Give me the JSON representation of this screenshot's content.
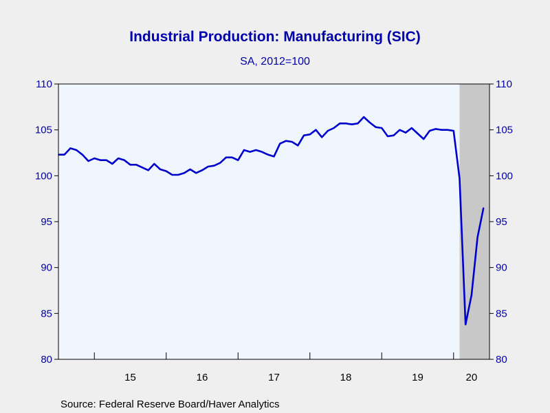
{
  "chart_data": {
    "type": "line",
    "title": "Industrial Production: Manufacturing (SIC)",
    "subtitle": "SA, 2012=100",
    "source": "Source:  Federal Reserve Board/Haver Analytics",
    "ylim": [
      80,
      110
    ],
    "yticks": [
      80,
      85,
      90,
      95,
      100,
      105,
      110
    ],
    "ytick_labels": [
      "80",
      "85",
      "90",
      "95",
      "100",
      "105",
      "110"
    ],
    "xlim": [
      "2014-07",
      "2020-07"
    ],
    "xtick_labels": [
      "15",
      "16",
      "17",
      "18",
      "19",
      "20"
    ],
    "recession": {
      "start": "2020-02",
      "end": "2020-07"
    },
    "colors": {
      "line": "#0000cc",
      "plot_bg": "#f0f6fe",
      "recession": "#c8c8c8",
      "text": "#0000aa"
    },
    "grid": false,
    "series": [
      {
        "x": [
          "2014-07",
          "2014-08",
          "2014-09",
          "2014-10",
          "2014-11",
          "2014-12",
          "2015-01",
          "2015-02",
          "2015-03",
          "2015-04",
          "2015-05",
          "2015-06",
          "2015-07",
          "2015-08",
          "2015-09",
          "2015-10",
          "2015-11",
          "2015-12",
          "2016-01",
          "2016-02",
          "2016-03",
          "2016-04",
          "2016-05",
          "2016-06",
          "2016-07",
          "2016-08",
          "2016-09",
          "2016-10",
          "2016-11",
          "2016-12",
          "2017-01",
          "2017-02",
          "2017-03",
          "2017-04",
          "2017-05",
          "2017-06",
          "2017-07",
          "2017-08",
          "2017-09",
          "2017-10",
          "2017-11",
          "2017-12",
          "2018-01",
          "2018-02",
          "2018-03",
          "2018-04",
          "2018-05",
          "2018-06",
          "2018-07",
          "2018-08",
          "2018-09",
          "2018-10",
          "2018-11",
          "2018-12",
          "2019-01",
          "2019-02",
          "2019-03",
          "2019-04",
          "2019-05",
          "2019-06",
          "2019-07",
          "2019-08",
          "2019-09",
          "2019-10",
          "2019-11",
          "2019-12",
          "2020-01",
          "2020-02",
          "2020-03",
          "2020-04",
          "2020-05",
          "2020-06"
        ],
        "values": [
          102.3,
          102.3,
          103.0,
          102.8,
          102.3,
          101.6,
          101.9,
          101.7,
          101.7,
          101.3,
          101.9,
          101.7,
          101.2,
          101.2,
          100.9,
          100.6,
          101.3,
          100.7,
          100.5,
          100.1,
          100.1,
          100.3,
          100.7,
          100.3,
          100.6,
          101.0,
          101.1,
          101.4,
          102.0,
          102.0,
          101.7,
          102.8,
          102.6,
          102.8,
          102.6,
          102.3,
          102.1,
          103.5,
          103.8,
          103.7,
          103.3,
          104.4,
          104.5,
          105.0,
          104.2,
          104.9,
          105.2,
          105.7,
          105.7,
          105.6,
          105.7,
          106.4,
          105.8,
          105.3,
          105.2,
          104.3,
          104.4,
          105.0,
          104.7,
          105.2,
          104.6,
          104.0,
          104.9,
          105.1,
          105.0,
          105.0,
          104.9,
          99.7,
          83.8,
          87.0,
          93.3,
          96.5
        ]
      }
    ]
  }
}
